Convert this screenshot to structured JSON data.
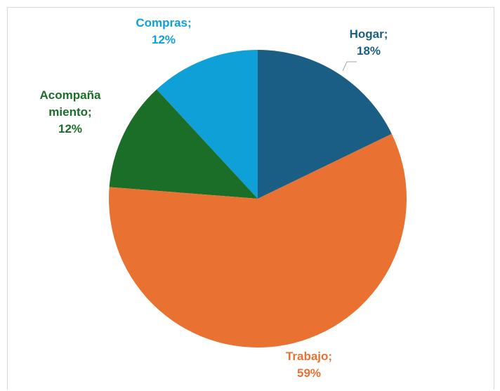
{
  "chart_data": {
    "type": "pie",
    "categories": [
      "Hogar;",
      "Trabajo;",
      "Acompañamiento;",
      "Compras;"
    ],
    "values": [
      18,
      59,
      12,
      12
    ],
    "value_labels": [
      "18%",
      "59%",
      "12%",
      "12%"
    ],
    "colors": [
      "#1b5e85",
      "#e97132",
      "#1b6e28",
      "#10a0d8"
    ]
  }
}
